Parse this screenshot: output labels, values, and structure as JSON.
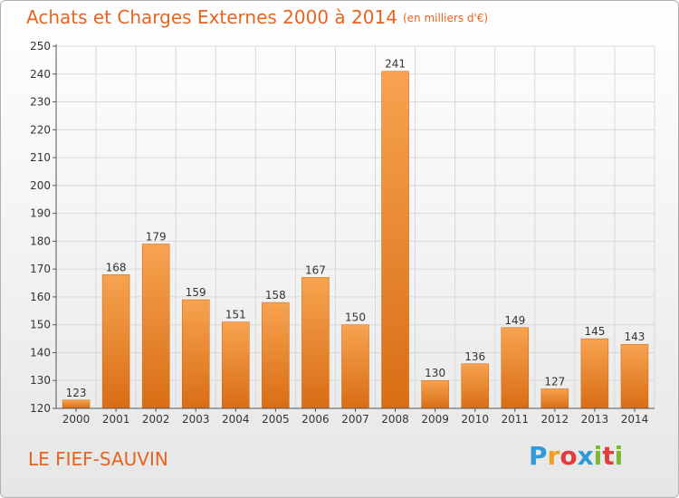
{
  "header": {
    "title": "Achats et Charges Externes 2000 à 2014",
    "unit": "(en milliers d'€)"
  },
  "footer": {
    "commune": "LE FIEF-SAUVIN",
    "logo_letters": [
      "P",
      "r",
      "o",
      "x",
      "i",
      "t",
      "i"
    ],
    "logo_colors": [
      "#2e9bd6",
      "#f0a020",
      "#e23c3c",
      "#2e9bd6",
      "#7ab830",
      "#e23c3c",
      "#7ab830"
    ]
  },
  "colors": {
    "accent": "#e8641e",
    "bar_top": "#f7a350",
    "bar_bottom": "#d96d15",
    "grid": "#d8d8d8"
  },
  "chart_data": {
    "type": "bar",
    "title": "Achats et Charges Externes 2000 à 2014",
    "categories": [
      "2000",
      "2001",
      "2002",
      "2003",
      "2004",
      "2005",
      "2006",
      "2007",
      "2008",
      "2009",
      "2010",
      "2011",
      "2012",
      "2013",
      "2014"
    ],
    "values": [
      123,
      168,
      179,
      159,
      151,
      158,
      167,
      150,
      241,
      130,
      136,
      149,
      127,
      145,
      143
    ],
    "ylim": [
      120,
      250
    ],
    "yticks": [
      120,
      130,
      140,
      150,
      160,
      170,
      180,
      190,
      200,
      210,
      220,
      230,
      240,
      250
    ],
    "grid": true
  }
}
